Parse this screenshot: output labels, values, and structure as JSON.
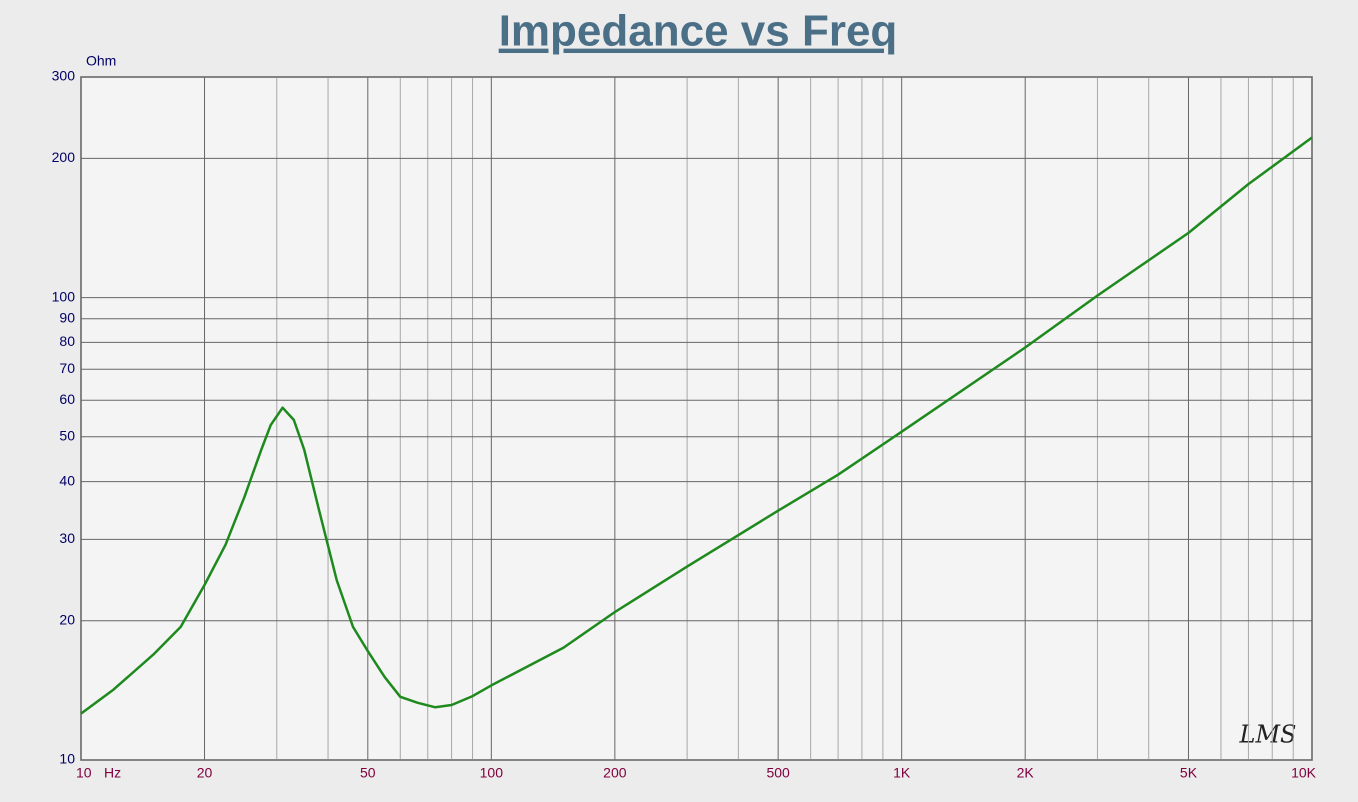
{
  "chart_data": {
    "type": "line",
    "title": "Impedance vs Freq",
    "x_label": "Hz",
    "y_label": "Ohm",
    "annotation": "LMS",
    "x": [
      10,
      12,
      15,
      17.5,
      20,
      22.5,
      25,
      27.5,
      29,
      31,
      33,
      35,
      38,
      42,
      46,
      50,
      55,
      60,
      66,
      73,
      80,
      90,
      100,
      150,
      200,
      300,
      500,
      700,
      1000,
      2000,
      3000,
      5000,
      7000,
      10000
    ],
    "series": [
      {
        "name": "Impedance",
        "color": "#1e8a1e",
        "values": [
          12.6,
          14.2,
          16.9,
          19.4,
          23.9,
          29.2,
          37,
          46.9,
          53,
          57.8,
          54.4,
          46.9,
          34.8,
          24.5,
          19.4,
          17.2,
          15.1,
          13.7,
          13.3,
          13.0,
          13.15,
          13.75,
          14.5,
          17.5,
          20.9,
          26.2,
          34.6,
          41.4,
          51.3,
          78,
          101,
          138,
          176,
          222
        ]
      }
    ],
    "xlog": true,
    "ylog": true,
    "grid": true,
    "xlim": [
      10,
      10000
    ],
    "ylim": [
      10,
      300
    ],
    "xticks": [
      10,
      20,
      50,
      100,
      200,
      500,
      {
        "value": 1000,
        "label": "1K"
      },
      {
        "value": 2000,
        "label": "2K"
      },
      {
        "value": 5000,
        "label": "5K"
      },
      {
        "value": 10000,
        "label": "10K"
      }
    ],
    "x_minor_ticks": [
      30,
      40,
      60,
      70,
      80,
      90,
      300,
      400,
      600,
      700,
      800,
      900,
      3000,
      4000,
      6000,
      7000,
      8000,
      9000
    ],
    "yticks": [
      10,
      20,
      30,
      40,
      50,
      60,
      70,
      80,
      90,
      100,
      200,
      300
    ]
  }
}
